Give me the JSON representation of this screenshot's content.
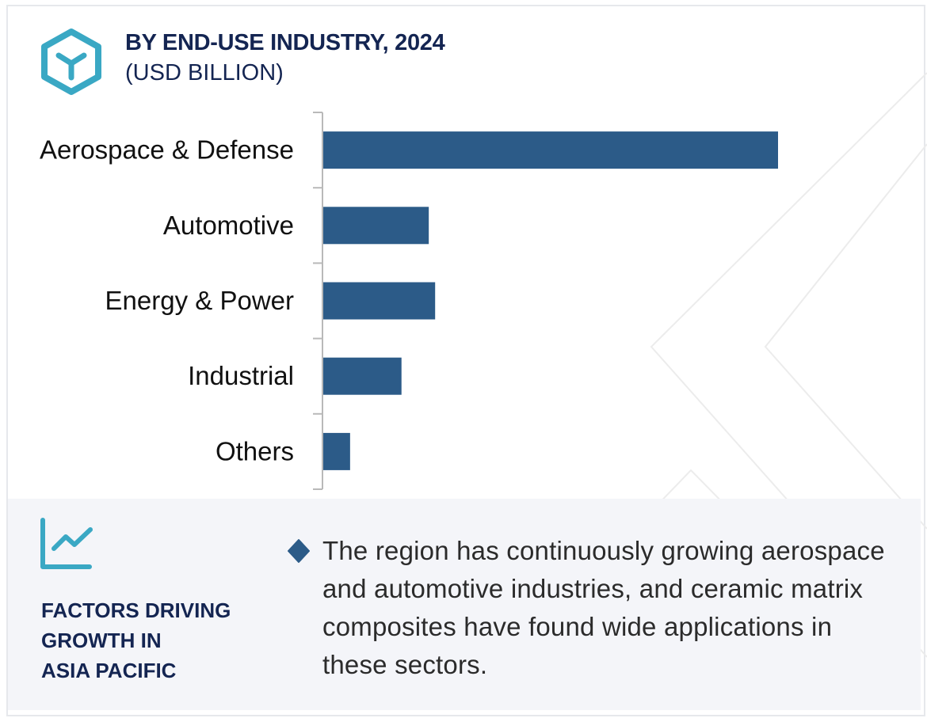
{
  "header": {
    "icon": "hexagon-y-icon",
    "title": "BY END-USE INDUSTRY, 2024",
    "subtitle": "(USD BILLION)"
  },
  "colors": {
    "bar": "#2c5b88",
    "accent": "#3aa8c4",
    "title": "#142552",
    "panel_bg": "#f4f5f9",
    "axis": "#b9b9b9"
  },
  "chart_data": {
    "type": "bar",
    "orientation": "horizontal",
    "title": "BY END-USE INDUSTRY, 2024",
    "subtitle": "(USD BILLION)",
    "xlabel": "",
    "ylabel": "",
    "value_note": "No values printed; relative bar lengths estimated with Aerospace & Defense = 100",
    "categories": [
      "Aerospace & Defense",
      "Automotive",
      "Energy & Power",
      "Industrial",
      "Others"
    ],
    "values": [
      100,
      23.2,
      24.6,
      17.2,
      5.9
    ],
    "xlim": [
      0,
      100
    ],
    "grid": false,
    "legend": "none"
  },
  "factors": {
    "icon": "line-chart-icon",
    "heading_lines": [
      "FACTORS DRIVING",
      "GROWTH IN",
      "ASIA PACIFIC"
    ],
    "bullet_icon": "diamond-bullet-icon",
    "text": "The region has continuously growing aerospace and automotive industries, and ceramic matrix composites have found wide applications in these sectors."
  }
}
